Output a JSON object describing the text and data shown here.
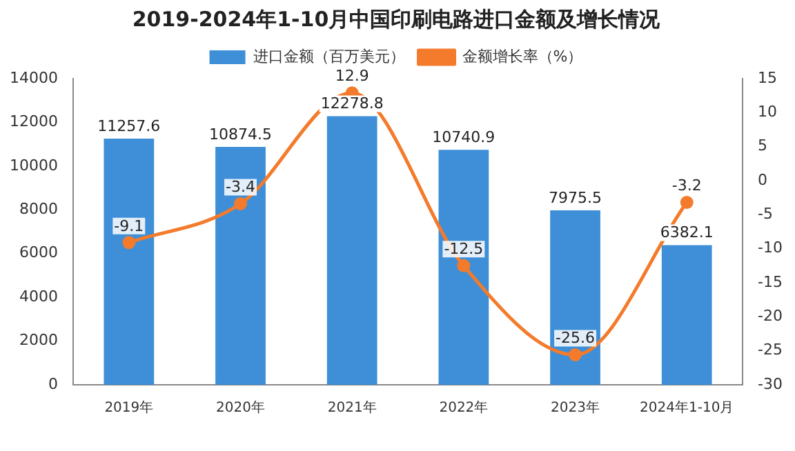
{
  "chart_data": {
    "type": "bar",
    "title": "2019-2024年1-10月中国印刷电路进口金额及增长情况",
    "categories": [
      "2019年",
      "2020年",
      "2021年",
      "2022年",
      "2023年",
      "2024年1-10月"
    ],
    "series": [
      {
        "name": "进口金额（百万美元）",
        "color": "#3e8fd8",
        "values": [
          11257.6,
          10874.5,
          12278.8,
          10740.9,
          7975.5,
          6382.1
        ]
      },
      {
        "name": "金额增长率（%）",
        "type": "line",
        "axis": "y2",
        "color": "#f37b2b",
        "values": [
          -9.1,
          -3.4,
          12.9,
          -12.5,
          -25.6,
          -3.2
        ]
      }
    ],
    "ylim": [
      0,
      14000
    ],
    "yticks": [
      0,
      2000,
      4000,
      6000,
      8000,
      10000,
      12000,
      14000
    ],
    "y2lim": [
      -30,
      15
    ],
    "y2ticks": [
      -30,
      -25,
      -20,
      -15,
      -10,
      -5,
      0,
      5,
      10,
      15
    ],
    "legend": "top",
    "marker": "circle",
    "data_labels": true,
    "grid": false
  }
}
